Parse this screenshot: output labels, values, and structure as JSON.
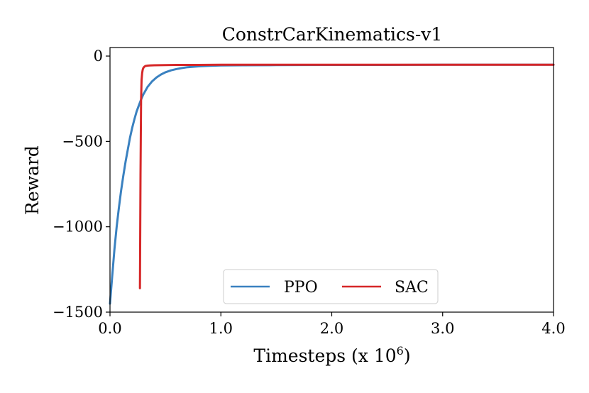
{
  "chart_data": {
    "type": "line",
    "title": "ConstrCarKinematics-v1",
    "xlabel": "Timesteps (x 10",
    "xlabel_exponent": "6",
    "xlabel_suffix": ")",
    "ylabel": "Reward",
    "xlim": [
      0.0,
      4.0
    ],
    "ylim": [
      -1500,
      50
    ],
    "xticks": [
      0.0,
      1.0,
      2.0,
      3.0,
      4.0
    ],
    "xtick_labels": [
      "0.0",
      "1.0",
      "2.0",
      "3.0",
      "4.0"
    ],
    "yticks": [
      0,
      -500,
      -1000,
      -1500
    ],
    "ytick_labels": [
      "0",
      "−500",
      "−1000",
      "−1500"
    ],
    "legend_position": "bottom-center",
    "series": [
      {
        "name": "PPO",
        "color": "#3a81c0",
        "x": [
          0.0,
          0.02,
          0.04,
          0.06,
          0.08,
          0.1,
          0.12,
          0.14,
          0.16,
          0.18,
          0.2,
          0.22,
          0.24,
          0.26,
          0.28,
          0.3,
          0.34,
          0.38,
          0.42,
          0.46,
          0.5,
          0.55,
          0.6,
          0.65,
          0.7,
          0.8,
          0.9,
          1.0,
          1.2,
          1.5,
          2.0,
          2.5,
          3.0,
          3.5,
          4.0
        ],
        "y": [
          -1450,
          -1290,
          -1130,
          -1000,
          -890,
          -790,
          -700,
          -620,
          -550,
          -480,
          -420,
          -370,
          -325,
          -290,
          -255,
          -225,
          -180,
          -148,
          -125,
          -108,
          -95,
          -84,
          -76,
          -70,
          -65,
          -60,
          -57,
          -55,
          -54,
          -53,
          -52,
          -52,
          -51,
          -51,
          -51
        ]
      },
      {
        "name": "SAC",
        "color": "#d62728",
        "x": [
          0.27,
          0.275,
          0.28,
          0.285,
          0.29,
          0.295,
          0.3,
          0.31,
          0.32,
          0.34,
          0.36,
          0.4,
          0.5,
          0.6,
          0.8,
          1.0,
          1.5,
          2.0,
          2.5,
          3.0,
          3.5,
          4.0
        ],
        "y": [
          -1360,
          -700,
          -260,
          -140,
          -100,
          -80,
          -70,
          -62,
          -58,
          -56,
          -55,
          -54,
          -53,
          -52,
          -52,
          -51,
          -51,
          -51,
          -51,
          -51,
          -51,
          -51
        ]
      }
    ]
  }
}
